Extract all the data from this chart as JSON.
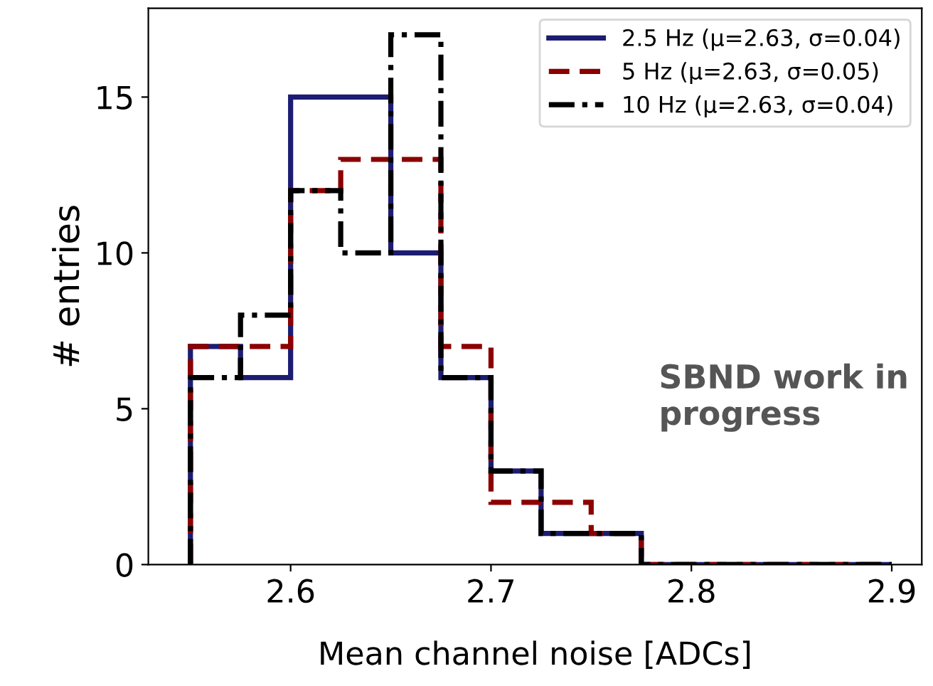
{
  "chart_data": {
    "type": "histogram",
    "xlabel": "Mean channel noise [ADCs]",
    "ylabel": "# entries",
    "bins": [
      2.55,
      2.575,
      2.6,
      2.625,
      2.65,
      2.675,
      2.7,
      2.725,
      2.75,
      2.775,
      2.8,
      2.825,
      2.85,
      2.875,
      2.9
    ],
    "series": [
      {
        "name": "2.5 Hz (μ=2.63, σ=0.04)",
        "color": "#1c1c72",
        "line_style": "solid",
        "values": [
          7,
          6,
          15,
          15,
          10,
          6,
          3,
          1,
          1,
          0,
          0,
          0,
          0,
          0
        ]
      },
      {
        "name": "5 Hz (μ=2.63, σ=0.05)",
        "color": "#8b0000",
        "line_style": "dashed",
        "values": [
          7,
          7,
          12,
          13,
          13,
          7,
          2,
          2,
          1,
          0,
          0,
          0,
          0,
          0
        ]
      },
      {
        "name": "10 Hz (μ=2.63, σ=0.04)",
        "color": "#000000",
        "line_style": "dashdot",
        "values": [
          6,
          8,
          12,
          10,
          17,
          6,
          3,
          1,
          1,
          0,
          0,
          0,
          0,
          0
        ]
      }
    ],
    "xlim": [
      2.529,
      2.915
    ],
    "ylim": [
      0,
      17.85
    ],
    "xticks": [
      2.6,
      2.7,
      2.8,
      2.9
    ],
    "yticks": [
      0,
      5,
      10,
      15
    ],
    "grid": false,
    "legend": "top right",
    "annotations": [
      "SBND work in progress"
    ]
  }
}
